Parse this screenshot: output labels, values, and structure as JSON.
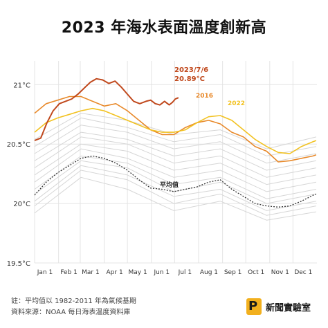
{
  "title": "2023 年海水表面溫度創新高",
  "footer": {
    "note": "註：平均值以 1982-2011 年為氣候基期",
    "source": "資料來源：NOAA 每日海表溫度資料庫"
  },
  "logo": {
    "text": "新聞實驗室",
    "mark": "P"
  },
  "colors": {
    "y2023": "#c0481c",
    "y2016": "#e8892a",
    "y2022": "#f2c221",
    "past": "#d6d6d6",
    "avg": "#333333",
    "grid": "#e4e4e4"
  },
  "chart_data": {
    "type": "line",
    "title": "2023 年海水表面溫度創新高",
    "xlabel": "",
    "ylabel": "",
    "ylim": [
      19.5,
      21.2
    ],
    "xlim": [
      0,
      365
    ],
    "grid": true,
    "x_ticks": [
      {
        "day": 0,
        "label": "Jan 1"
      },
      {
        "day": 31,
        "label": "Feb 1"
      },
      {
        "day": 59,
        "label": "Mar 1"
      },
      {
        "day": 90,
        "label": "Apr 1"
      },
      {
        "day": 120,
        "label": "May 1"
      },
      {
        "day": 151,
        "label": "Jun 1"
      },
      {
        "day": 181,
        "label": "Jul 1"
      },
      {
        "day": 212,
        "label": "Aug 1"
      },
      {
        "day": 243,
        "label": "Sep 1"
      },
      {
        "day": 273,
        "label": "Oct 1"
      },
      {
        "day": 304,
        "label": "Nov 1"
      },
      {
        "day": 334,
        "label": "Dec 1"
      }
    ],
    "y_ticks": [
      {
        "value": 21.0,
        "label": "21°C"
      },
      {
        "value": 20.5,
        "label": "20.5°C"
      },
      {
        "value": 20.0,
        "label": "20°C"
      },
      {
        "value": 19.5,
        "label": "19.5°C"
      }
    ],
    "series": [
      {
        "name": "2023",
        "style": "highlight-2023",
        "x": [
          0,
          8,
          16,
          24,
          32,
          40,
          48,
          56,
          64,
          72,
          80,
          88,
          96,
          104,
          112,
          120,
          128,
          136,
          144,
          150,
          156,
          162,
          168,
          174,
          178,
          182,
          186
        ],
        "y": [
          20.53,
          20.55,
          20.68,
          20.78,
          20.84,
          20.86,
          20.88,
          20.92,
          20.97,
          21.02,
          21.05,
          21.04,
          21.01,
          21.03,
          20.98,
          20.92,
          20.86,
          20.84,
          20.86,
          20.87,
          20.84,
          20.83,
          20.86,
          20.83,
          20.85,
          20.88,
          20.89
        ]
      },
      {
        "name": "2016",
        "style": "highlight-2016",
        "x": [
          0,
          15,
          30,
          45,
          60,
          75,
          90,
          105,
          120,
          135,
          150,
          165,
          180,
          195,
          210,
          225,
          240,
          255,
          270,
          285,
          300,
          315,
          330,
          345,
          360,
          364
        ],
        "y": [
          20.76,
          20.84,
          20.87,
          20.9,
          20.9,
          20.86,
          20.82,
          20.84,
          20.78,
          20.7,
          20.62,
          20.58,
          20.58,
          20.64,
          20.68,
          20.7,
          20.67,
          20.6,
          20.56,
          20.48,
          20.44,
          20.35,
          20.36,
          20.38,
          20.4,
          20.41
        ]
      },
      {
        "name": "2022",
        "style": "highlight-2022",
        "x": [
          0,
          15,
          30,
          45,
          60,
          75,
          90,
          105,
          120,
          135,
          150,
          165,
          180,
          195,
          210,
          225,
          240,
          255,
          270,
          285,
          300,
          315,
          330,
          345,
          360,
          364
        ],
        "y": [
          20.6,
          20.68,
          20.72,
          20.75,
          20.78,
          20.8,
          20.78,
          20.74,
          20.7,
          20.66,
          20.62,
          20.6,
          20.6,
          20.62,
          20.68,
          20.73,
          20.74,
          20.7,
          20.62,
          20.54,
          20.48,
          20.43,
          20.42,
          20.48,
          20.52,
          20.53
        ]
      },
      {
        "name": "平均值",
        "style": "average",
        "x": [
          0,
          15,
          30,
          45,
          60,
          75,
          90,
          105,
          120,
          135,
          150,
          165,
          180,
          195,
          210,
          225,
          240,
          255,
          270,
          285,
          300,
          315,
          330,
          345,
          360,
          364
        ],
        "y": [
          20.07,
          20.18,
          20.26,
          20.32,
          20.38,
          20.4,
          20.38,
          20.34,
          20.28,
          20.2,
          20.13,
          20.12,
          20.1,
          20.12,
          20.14,
          20.18,
          20.2,
          20.12,
          20.06,
          20.0,
          19.98,
          19.97,
          19.98,
          20.02,
          20.07,
          20.08
        ]
      },
      {
        "style": "past",
        "x": [
          0,
          60,
          120,
          180,
          240,
          300,
          364
        ],
        "y": [
          19.92,
          20.22,
          20.12,
          19.94,
          20.02,
          19.86,
          19.93
        ]
      },
      {
        "style": "past",
        "x": [
          0,
          60,
          120,
          180,
          240,
          300,
          364
        ],
        "y": [
          19.98,
          20.28,
          20.2,
          20.0,
          20.08,
          19.9,
          19.98
        ]
      },
      {
        "style": "past",
        "x": [
          0,
          60,
          120,
          180,
          240,
          300,
          364
        ],
        "y": [
          20.02,
          20.32,
          20.24,
          20.06,
          20.12,
          19.94,
          20.02
        ]
      },
      {
        "style": "past",
        "x": [
          0,
          60,
          120,
          180,
          240,
          300,
          364
        ],
        "y": [
          20.08,
          20.36,
          20.3,
          20.1,
          20.18,
          20.0,
          20.08
        ]
      },
      {
        "style": "past",
        "x": [
          0,
          60,
          120,
          180,
          240,
          300,
          364
        ],
        "y": [
          20.12,
          20.4,
          20.34,
          20.16,
          20.22,
          20.04,
          20.12
        ]
      },
      {
        "style": "past",
        "x": [
          0,
          60,
          120,
          180,
          240,
          300,
          364
        ],
        "y": [
          20.18,
          20.46,
          20.38,
          20.22,
          20.28,
          20.1,
          20.18
        ]
      },
      {
        "style": "past",
        "x": [
          0,
          60,
          120,
          180,
          240,
          300,
          364
        ],
        "y": [
          20.24,
          20.5,
          20.44,
          20.28,
          20.34,
          20.16,
          20.24
        ]
      },
      {
        "style": "past",
        "x": [
          0,
          60,
          120,
          180,
          240,
          300,
          364
        ],
        "y": [
          20.3,
          20.56,
          20.5,
          20.34,
          20.4,
          20.22,
          20.3
        ]
      },
      {
        "style": "past",
        "x": [
          0,
          60,
          120,
          180,
          240,
          300,
          364
        ],
        "y": [
          20.36,
          20.6,
          20.54,
          20.4,
          20.46,
          20.28,
          20.36
        ]
      },
      {
        "style": "past",
        "x": [
          0,
          60,
          120,
          180,
          240,
          300,
          364
        ],
        "y": [
          20.42,
          20.66,
          20.6,
          20.46,
          20.52,
          20.34,
          20.42
        ]
      },
      {
        "style": "past",
        "x": [
          0,
          60,
          120,
          180,
          240,
          300,
          364
        ],
        "y": [
          20.48,
          20.72,
          20.64,
          20.52,
          20.58,
          20.4,
          20.48
        ]
      },
      {
        "style": "past",
        "x": [
          0,
          60,
          120,
          180,
          240,
          300,
          364
        ],
        "y": [
          20.54,
          20.76,
          20.7,
          20.58,
          20.62,
          20.46,
          20.56
        ]
      }
    ],
    "annotations": [
      {
        "text": "2023/7/6",
        "series": "2023"
      },
      {
        "text": "20.89°C",
        "series": "2023"
      },
      {
        "text": "2016",
        "series": "2016"
      },
      {
        "text": "2022",
        "series": "2022"
      },
      {
        "text": "平均值",
        "series": "平均值"
      }
    ]
  }
}
